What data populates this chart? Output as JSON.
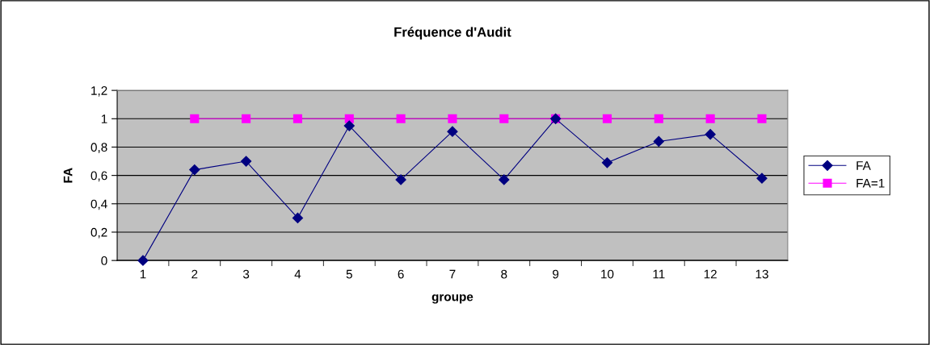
{
  "chart_data": {
    "type": "line",
    "title": "Fréquence d'Audit",
    "xlabel": "groupe",
    "ylabel": "FA",
    "categories": [
      "1",
      "2",
      "3",
      "4",
      "5",
      "6",
      "7",
      "8",
      "9",
      "10",
      "11",
      "12",
      "13"
    ],
    "series": [
      {
        "name": "FA",
        "color": "#000080",
        "marker": "diamond",
        "values": [
          0,
          0.64,
          0.7,
          0.3,
          0.95,
          0.57,
          0.91,
          0.57,
          1.0,
          0.69,
          0.84,
          0.89,
          0.58
        ]
      },
      {
        "name": "FA=1",
        "color": "#ff00ff",
        "marker": "square",
        "values": [
          null,
          1,
          1,
          1,
          1,
          1,
          1,
          1,
          1,
          1,
          1,
          1,
          1
        ]
      }
    ],
    "ylim": [
      0,
      1.2
    ],
    "yticks": [
      0,
      {
        "value": 0.2,
        "label": "0,2"
      },
      {
        "value": 0.4,
        "label": "0,4"
      },
      {
        "value": 0.6,
        "label": "0,6"
      },
      {
        "value": 0.8,
        "label": "0,8"
      },
      1,
      {
        "value": 1.2,
        "label": "1,2"
      }
    ],
    "grid": "y",
    "legend": "right",
    "line_style": "solid"
  }
}
